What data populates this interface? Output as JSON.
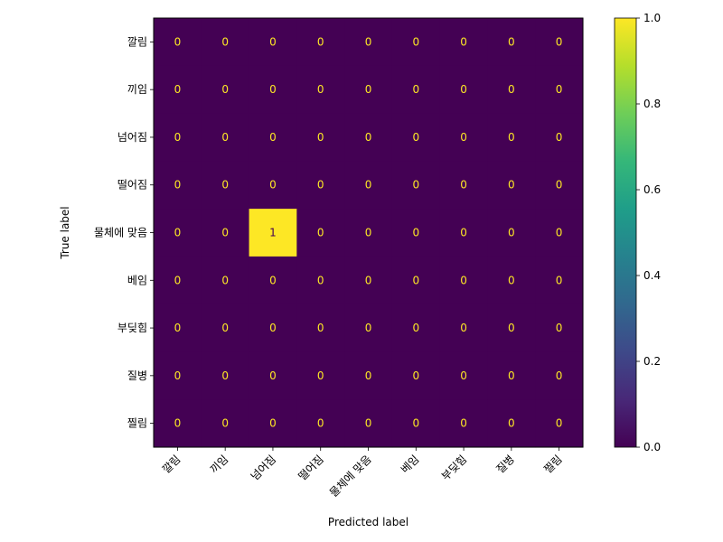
{
  "chart_data": {
    "type": "heatmap",
    "title": "",
    "xlabel": "Predicted label",
    "ylabel": "True label",
    "x_categories": [
      "깔림",
      "끼임",
      "넘어짐",
      "떨어짐",
      "물체에 맞음",
      "베임",
      "부딪힘",
      "질병",
      "찔림"
    ],
    "y_categories": [
      "깔림",
      "끼임",
      "넘어짐",
      "떨어짐",
      "물체에 맞음",
      "베임",
      "부딪힘",
      "질병",
      "찔림"
    ],
    "values": [
      [
        0,
        0,
        0,
        0,
        0,
        0,
        0,
        0,
        0
      ],
      [
        0,
        0,
        0,
        0,
        0,
        0,
        0,
        0,
        0
      ],
      [
        0,
        0,
        0,
        0,
        0,
        0,
        0,
        0,
        0
      ],
      [
        0,
        0,
        0,
        0,
        0,
        0,
        0,
        0,
        0
      ],
      [
        0,
        0,
        1,
        0,
        0,
        0,
        0,
        0,
        0
      ],
      [
        0,
        0,
        0,
        0,
        0,
        0,
        0,
        0,
        0
      ],
      [
        0,
        0,
        0,
        0,
        0,
        0,
        0,
        0,
        0
      ],
      [
        0,
        0,
        0,
        0,
        0,
        0,
        0,
        0,
        0
      ],
      [
        0,
        0,
        0,
        0,
        0,
        0,
        0,
        0,
        0
      ]
    ],
    "colorbar": {
      "colormap": "viridis",
      "range": [
        0.0,
        1.0
      ],
      "ticks": [
        "0.0",
        "0.2",
        "0.4",
        "0.6",
        "0.8",
        "1.0"
      ]
    },
    "colors": {
      "low": "#440154",
      "high": "#fde725",
      "text_on_low": "#fde725",
      "text_on_high": "#440154"
    },
    "grid": false
  }
}
